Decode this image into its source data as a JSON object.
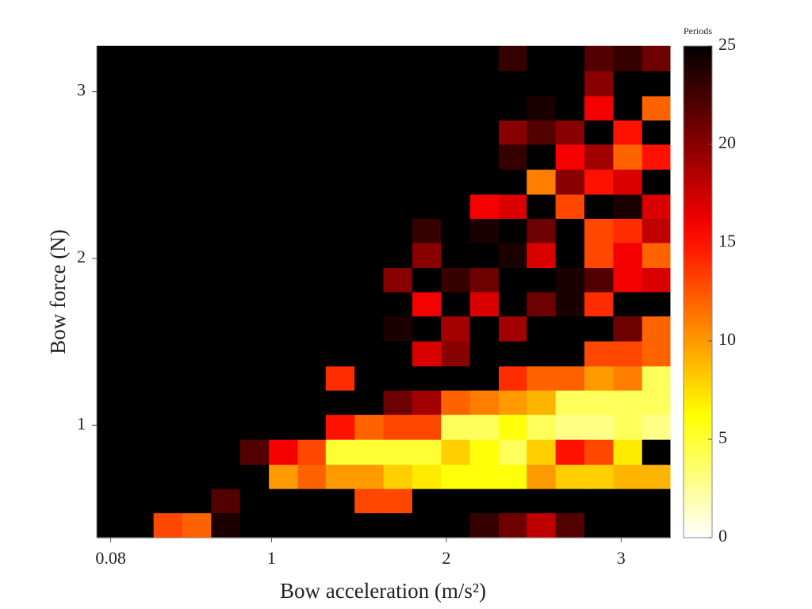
{
  "chart_data": {
    "type": "heatmap",
    "xlabel": "Bow acceleration (m/s²)",
    "ylabel": "Bow force (N)",
    "colorbar_label": "Periods",
    "colormap": "hot_r",
    "x": [
      0.08,
      0.24,
      0.41,
      0.57,
      0.74,
      0.9,
      1.07,
      1.23,
      1.39,
      1.56,
      1.72,
      1.89,
      2.05,
      2.22,
      2.38,
      2.54,
      2.71,
      2.87,
      3.04,
      3.2
    ],
    "y": [
      0.4,
      0.55,
      0.69,
      0.84,
      0.99,
      1.14,
      1.28,
      1.43,
      1.58,
      1.73,
      1.87,
      2.02,
      2.17,
      2.31,
      2.46,
      2.61,
      2.76,
      2.9,
      3.05,
      3.2
    ],
    "z": [
      [
        25,
        25,
        13,
        12,
        24,
        25,
        25,
        25,
        25,
        25,
        25,
        25,
        25,
        23,
        21,
        18,
        22,
        25,
        25,
        25
      ],
      [
        25,
        25,
        25,
        25,
        22,
        25,
        25,
        25,
        25,
        13,
        13,
        25,
        25,
        25,
        25,
        25,
        25,
        25,
        25,
        25
      ],
      [
        25,
        25,
        25,
        25,
        25,
        25,
        10,
        12,
        10,
        10,
        8,
        7,
        6,
        6,
        6,
        10,
        8,
        8,
        9,
        9
      ],
      [
        25,
        25,
        25,
        25,
        25,
        22,
        16,
        13,
        5,
        5,
        5,
        5,
        8,
        6,
        4,
        8,
        15,
        13,
        7,
        25
      ],
      [
        25,
        25,
        25,
        25,
        25,
        25,
        25,
        25,
        15,
        12,
        13,
        13,
        4,
        4,
        6,
        4,
        3,
        3,
        4,
        3
      ],
      [
        25,
        25,
        25,
        25,
        25,
        25,
        25,
        25,
        25,
        25,
        21,
        19,
        12,
        11,
        10,
        9,
        4,
        4,
        4,
        4
      ],
      [
        25,
        25,
        25,
        25,
        25,
        25,
        25,
        25,
        14,
        25,
        25,
        25,
        25,
        25,
        14,
        12,
        12,
        10,
        11,
        4
      ],
      [
        25,
        25,
        25,
        25,
        25,
        25,
        25,
        25,
        25,
        25,
        25,
        17,
        20,
        25,
        25,
        25,
        25,
        13,
        13,
        12
      ],
      [
        25,
        25,
        25,
        25,
        25,
        25,
        25,
        25,
        25,
        25,
        24,
        25,
        19,
        25,
        19,
        25,
        25,
        25,
        21,
        12
      ],
      [
        25,
        25,
        25,
        25,
        25,
        25,
        25,
        25,
        25,
        25,
        25,
        16,
        25,
        17,
        25,
        21,
        24,
        14,
        25,
        25
      ],
      [
        25,
        25,
        25,
        25,
        25,
        25,
        25,
        25,
        25,
        25,
        20,
        25,
        23,
        21,
        25,
        25,
        24,
        22,
        16,
        17
      ],
      [
        25,
        25,
        25,
        25,
        25,
        25,
        25,
        25,
        25,
        25,
        25,
        20,
        25,
        25,
        24,
        17,
        25,
        13,
        16,
        12
      ],
      [
        25,
        25,
        25,
        25,
        25,
        25,
        25,
        25,
        25,
        25,
        25,
        23,
        25,
        24,
        25,
        21,
        25,
        13,
        14,
        18
      ],
      [
        25,
        25,
        25,
        25,
        25,
        25,
        25,
        25,
        25,
        25,
        25,
        25,
        25,
        16,
        17,
        25,
        13,
        25,
        24,
        17
      ],
      [
        25,
        25,
        25,
        25,
        25,
        25,
        25,
        25,
        25,
        25,
        25,
        25,
        25,
        25,
        25,
        11,
        20,
        15,
        17,
        25
      ],
      [
        25,
        25,
        25,
        25,
        25,
        25,
        25,
        25,
        25,
        25,
        25,
        25,
        25,
        25,
        23,
        25,
        16,
        19,
        12,
        15
      ],
      [
        25,
        25,
        25,
        25,
        25,
        25,
        25,
        25,
        25,
        25,
        25,
        25,
        25,
        25,
        20,
        22,
        20,
        25,
        15,
        25
      ],
      [
        25,
        25,
        25,
        25,
        25,
        25,
        25,
        25,
        25,
        25,
        25,
        25,
        25,
        25,
        25,
        24,
        25,
        16,
        25,
        12
      ],
      [
        25,
        25,
        25,
        25,
        25,
        25,
        25,
        25,
        25,
        25,
        25,
        25,
        25,
        25,
        25,
        25,
        25,
        20,
        25,
        25
      ],
      [
        25,
        25,
        25,
        25,
        25,
        25,
        25,
        25,
        25,
        25,
        25,
        25,
        25,
        25,
        23,
        25,
        25,
        22,
        23,
        21
      ]
    ],
    "xlim": [
      0,
      3.28
    ],
    "ylim": [
      0.326,
      3.274
    ],
    "xticks": [
      0.08,
      1,
      2,
      3
    ],
    "yticks": [
      1,
      2,
      3
    ],
    "clim": [
      0,
      25
    ],
    "cticks": [
      0,
      5,
      10,
      15,
      20,
      25
    ]
  }
}
